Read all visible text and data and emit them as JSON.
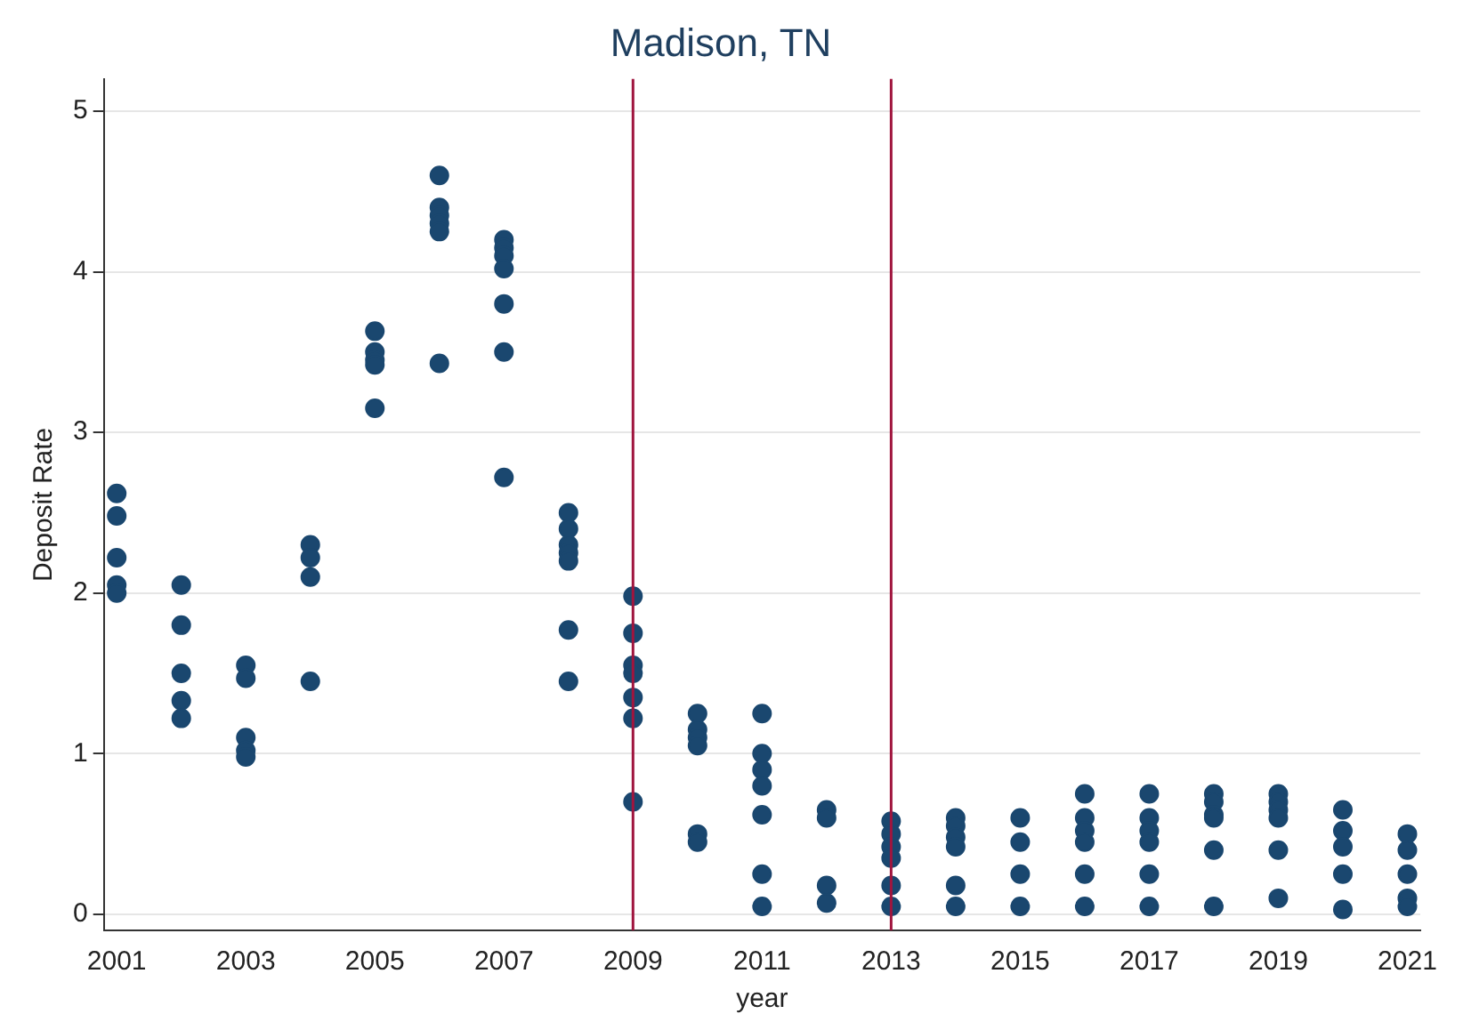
{
  "chart_data": {
    "type": "scatter",
    "title": "Madison, TN",
    "xlabel": "year",
    "ylabel": "Deposit Rate",
    "x": [
      2001,
      2001,
      2001,
      2001,
      2001,
      2002,
      2002,
      2002,
      2002,
      2002,
      2003,
      2003,
      2003,
      2003,
      2003,
      2004,
      2004,
      2004,
      2004,
      2005,
      2005,
      2005,
      2005,
      2005,
      2006,
      2006,
      2006,
      2006,
      2006,
      2006,
      2007,
      2007,
      2007,
      2007,
      2007,
      2007,
      2007,
      2008,
      2008,
      2008,
      2008,
      2008,
      2008,
      2008,
      2009,
      2009,
      2009,
      2009,
      2009,
      2009,
      2009,
      2010,
      2010,
      2010,
      2010,
      2010,
      2010,
      2011,
      2011,
      2011,
      2011,
      2011,
      2011,
      2011,
      2012,
      2012,
      2012,
      2012,
      2013,
      2013,
      2013,
      2013,
      2013,
      2013,
      2014,
      2014,
      2014,
      2014,
      2014,
      2014,
      2015,
      2015,
      2015,
      2015,
      2016,
      2016,
      2016,
      2016,
      2016,
      2016,
      2017,
      2017,
      2017,
      2017,
      2017,
      2017,
      2018,
      2018,
      2018,
      2018,
      2018,
      2018,
      2019,
      2019,
      2019,
      2019,
      2019,
      2019,
      2020,
      2020,
      2020,
      2020,
      2020,
      2021,
      2021,
      2021,
      2021,
      2021
    ],
    "series": [
      {
        "color": "#1a476f",
        "values": [
          2.62,
          2.48,
          2.22,
          2.05,
          2.0,
          2.05,
          1.8,
          1.5,
          1.33,
          1.22,
          1.55,
          1.47,
          1.1,
          1.02,
          0.98,
          2.3,
          2.22,
          2.1,
          1.45,
          3.63,
          3.5,
          3.45,
          3.42,
          3.15,
          4.6,
          4.4,
          4.35,
          4.3,
          4.25,
          3.43,
          4.2,
          4.15,
          4.1,
          4.02,
          3.8,
          3.5,
          2.72,
          2.5,
          2.4,
          2.3,
          2.25,
          2.2,
          1.77,
          1.45,
          1.98,
          1.75,
          1.55,
          1.5,
          1.35,
          1.22,
          0.7,
          1.25,
          1.15,
          1.1,
          1.05,
          0.5,
          0.45,
          1.25,
          1.0,
          0.9,
          0.8,
          0.62,
          0.25,
          0.05,
          0.65,
          0.6,
          0.18,
          0.07,
          0.58,
          0.5,
          0.42,
          0.35,
          0.18,
          0.05,
          0.6,
          0.55,
          0.48,
          0.42,
          0.18,
          0.05,
          0.6,
          0.45,
          0.25,
          0.05,
          0.75,
          0.6,
          0.52,
          0.45,
          0.25,
          0.05,
          0.75,
          0.6,
          0.52,
          0.45,
          0.25,
          0.05,
          0.75,
          0.7,
          0.62,
          0.6,
          0.4,
          0.05,
          0.75,
          0.7,
          0.65,
          0.6,
          0.4,
          0.1,
          0.65,
          0.52,
          0.42,
          0.25,
          0.03,
          0.5,
          0.4,
          0.25,
          0.1,
          0.05
        ]
      }
    ],
    "xlim": [
      2000.8,
      2021.2
    ],
    "xticks": [
      2001,
      2003,
      2005,
      2007,
      2009,
      2011,
      2013,
      2015,
      2017,
      2019,
      2021
    ],
    "ylim": [
      -0.1,
      5.2
    ],
    "yticks": [
      0,
      1,
      2,
      3,
      4,
      5
    ],
    "ref_lines": [
      {
        "axis": "x",
        "value": 2009,
        "color": "#a0153e"
      },
      {
        "axis": "x",
        "value": 2013,
        "color": "#a0153e"
      }
    ],
    "grid": "y",
    "marker": "circle",
    "legend": false
  }
}
